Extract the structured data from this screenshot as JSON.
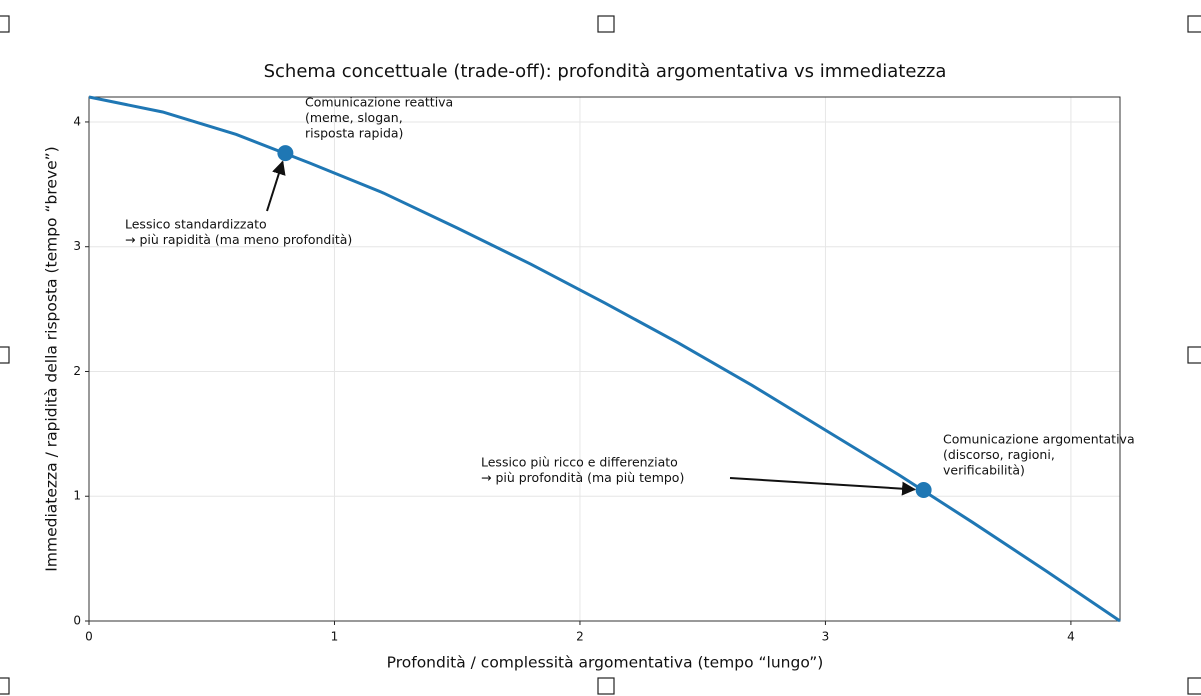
{
  "chart_data": {
    "type": "line",
    "title": "Schema concettuale (trade-off): profondità argomentativa vs immediatezza",
    "xlabel": "Profondità / complessità argomentativa (tempo “lungo”)",
    "ylabel": "Immediatezza / rapidità della risposta (tempo “breve”)",
    "x": [
      0,
      0.3,
      0.6,
      0.9,
      1.2,
      1.5,
      1.8,
      2.1,
      2.4,
      2.7,
      3.0,
      3.3,
      3.6,
      3.9,
      4.2
    ],
    "series": [
      {
        "color": "#1f77b4",
        "values": [
          4.2,
          4.08,
          3.9,
          3.67,
          3.43,
          3.15,
          2.86,
          2.55,
          2.23,
          1.89,
          1.53,
          1.17,
          0.79,
          0.4,
          0
        ]
      }
    ],
    "points": {
      "color": "#1f77b4",
      "x": [
        0.8,
        3.4
      ],
      "y": [
        3.75,
        1.05
      ]
    },
    "annotations": [
      [
        "Comunicazione reattiva",
        "(meme, slogan,",
        "risposta rapida)"
      ],
      [
        "Lessico standardizzato",
        "→ più rapidità (ma meno profondità)"
      ],
      [
        "Lessico più ricco e differenziato",
        "→ più profondità (ma più tempo)"
      ],
      [
        "Comunicazione argomentativa",
        "(discorso, ragioni,",
        "verificabilità)"
      ]
    ],
    "xlim": [
      0,
      4.2
    ],
    "ylim": [
      0,
      4.2
    ],
    "xticks": [
      0,
      1,
      2,
      3,
      4
    ],
    "yticks": [
      0,
      1,
      2,
      3,
      4
    ],
    "grid": true
  }
}
